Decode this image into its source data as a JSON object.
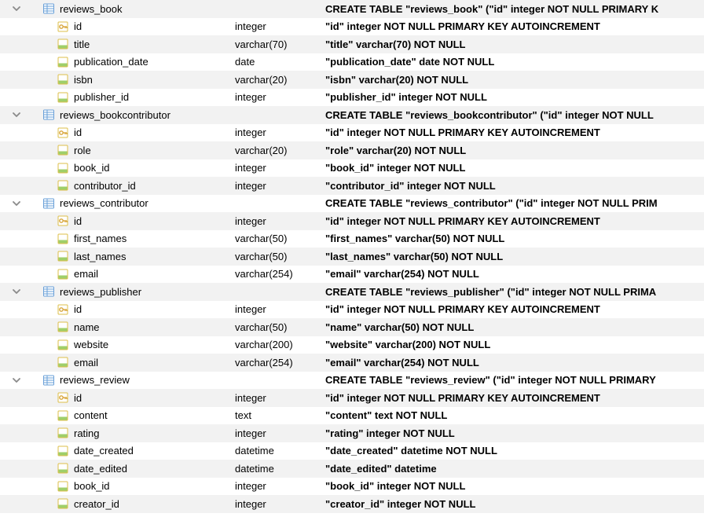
{
  "row_stripe_color": "#f2f2f2",
  "chevron_color": "#8a8a8a",
  "table_icon_colors": {
    "border": "#6aa0d8",
    "bg": "#ffffff",
    "line": "#6aa0d8"
  },
  "column_icon_colors": {
    "border": "#dcbf4a",
    "bg": "#ffffff",
    "stripe": "#9fcf6a"
  },
  "pk_icon_colors": {
    "border": "#dcbf4a",
    "bg": "#ffffff",
    "key": "#d8a53a"
  },
  "tables": [
    {
      "name": "reviews_book",
      "definition": "CREATE TABLE \"reviews_book\" (\"id\" integer NOT NULL PRIMARY K",
      "columns": [
        {
          "name": "id",
          "type": "integer",
          "definition": "\"id\" integer NOT NULL PRIMARY KEY AUTOINCREMENT",
          "pk": true
        },
        {
          "name": "title",
          "type": "varchar(70)",
          "definition": "\"title\" varchar(70) NOT NULL",
          "pk": false
        },
        {
          "name": "publication_date",
          "type": "date",
          "definition": "\"publication_date\" date NOT NULL",
          "pk": false
        },
        {
          "name": "isbn",
          "type": "varchar(20)",
          "definition": "\"isbn\" varchar(20) NOT NULL",
          "pk": false
        },
        {
          "name": "publisher_id",
          "type": "integer",
          "definition": "\"publisher_id\" integer NOT NULL",
          "pk": false
        }
      ]
    },
    {
      "name": "reviews_bookcontributor",
      "definition": "CREATE TABLE \"reviews_bookcontributor\" (\"id\" integer NOT NULL",
      "columns": [
        {
          "name": "id",
          "type": "integer",
          "definition": "\"id\" integer NOT NULL PRIMARY KEY AUTOINCREMENT",
          "pk": true
        },
        {
          "name": "role",
          "type": "varchar(20)",
          "definition": "\"role\" varchar(20) NOT NULL",
          "pk": false
        },
        {
          "name": "book_id",
          "type": "integer",
          "definition": "\"book_id\" integer NOT NULL",
          "pk": false
        },
        {
          "name": "contributor_id",
          "type": "integer",
          "definition": "\"contributor_id\" integer NOT NULL",
          "pk": false
        }
      ]
    },
    {
      "name": "reviews_contributor",
      "definition": "CREATE TABLE \"reviews_contributor\" (\"id\" integer NOT NULL PRIM",
      "columns": [
        {
          "name": "id",
          "type": "integer",
          "definition": "\"id\" integer NOT NULL PRIMARY KEY AUTOINCREMENT",
          "pk": true
        },
        {
          "name": "first_names",
          "type": "varchar(50)",
          "definition": "\"first_names\" varchar(50) NOT NULL",
          "pk": false
        },
        {
          "name": "last_names",
          "type": "varchar(50)",
          "definition": "\"last_names\" varchar(50) NOT NULL",
          "pk": false
        },
        {
          "name": "email",
          "type": "varchar(254)",
          "definition": "\"email\" varchar(254) NOT NULL",
          "pk": false
        }
      ]
    },
    {
      "name": "reviews_publisher",
      "definition": "CREATE TABLE \"reviews_publisher\" (\"id\" integer NOT NULL PRIMA",
      "columns": [
        {
          "name": "id",
          "type": "integer",
          "definition": "\"id\" integer NOT NULL PRIMARY KEY AUTOINCREMENT",
          "pk": true
        },
        {
          "name": "name",
          "type": "varchar(50)",
          "definition": "\"name\" varchar(50) NOT NULL",
          "pk": false
        },
        {
          "name": "website",
          "type": "varchar(200)",
          "definition": "\"website\" varchar(200) NOT NULL",
          "pk": false
        },
        {
          "name": "email",
          "type": "varchar(254)",
          "definition": "\"email\" varchar(254) NOT NULL",
          "pk": false
        }
      ]
    },
    {
      "name": "reviews_review",
      "definition": "CREATE TABLE \"reviews_review\" (\"id\" integer NOT NULL PRIMARY",
      "columns": [
        {
          "name": "id",
          "type": "integer",
          "definition": "\"id\" integer NOT NULL PRIMARY KEY AUTOINCREMENT",
          "pk": true
        },
        {
          "name": "content",
          "type": "text",
          "definition": "\"content\" text NOT NULL",
          "pk": false
        },
        {
          "name": "rating",
          "type": "integer",
          "definition": "\"rating\" integer NOT NULL",
          "pk": false
        },
        {
          "name": "date_created",
          "type": "datetime",
          "definition": "\"date_created\" datetime NOT NULL",
          "pk": false
        },
        {
          "name": "date_edited",
          "type": "datetime",
          "definition": "\"date_edited\" datetime",
          "pk": false
        },
        {
          "name": "book_id",
          "type": "integer",
          "definition": "\"book_id\" integer NOT NULL",
          "pk": false
        },
        {
          "name": "creator_id",
          "type": "integer",
          "definition": "\"creator_id\" integer NOT NULL",
          "pk": false
        }
      ]
    }
  ]
}
